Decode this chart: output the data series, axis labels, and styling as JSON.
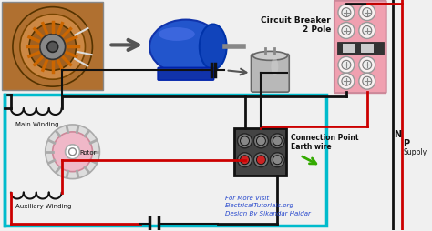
{
  "bg_color": "#f0f0f0",
  "circuit_breaker_label": "Circuit Breaker\n2 Pole",
  "connection_point_label": "Connection Point\nEarth wire",
  "supply_label": "Supply",
  "n_label": "N",
  "p_label": "P",
  "main_winding_label": "Main Winding",
  "auxiliary_winding_label": "Auxiliary Winding",
  "rotor_label": "Rotor",
  "footer_text": "For More Visit\nElectricalTutorials.org\nDesign By Sikandar Haidar",
  "wire_black": "#111111",
  "wire_red": "#cc0000",
  "wire_cyan": "#00bbcc",
  "breaker_pink": "#f0a0b0",
  "breaker_dark": "#333333",
  "breaker_white_stripe": "#cccccc",
  "breaker_screw": "#cccccc",
  "cap_fill": "#b8b8b8",
  "rotor_fill": "#f0b0c0",
  "rotor_outer": "#dddddd",
  "text_black": "#111111",
  "text_blue": "#2244cc",
  "text_green": "#44aa00"
}
